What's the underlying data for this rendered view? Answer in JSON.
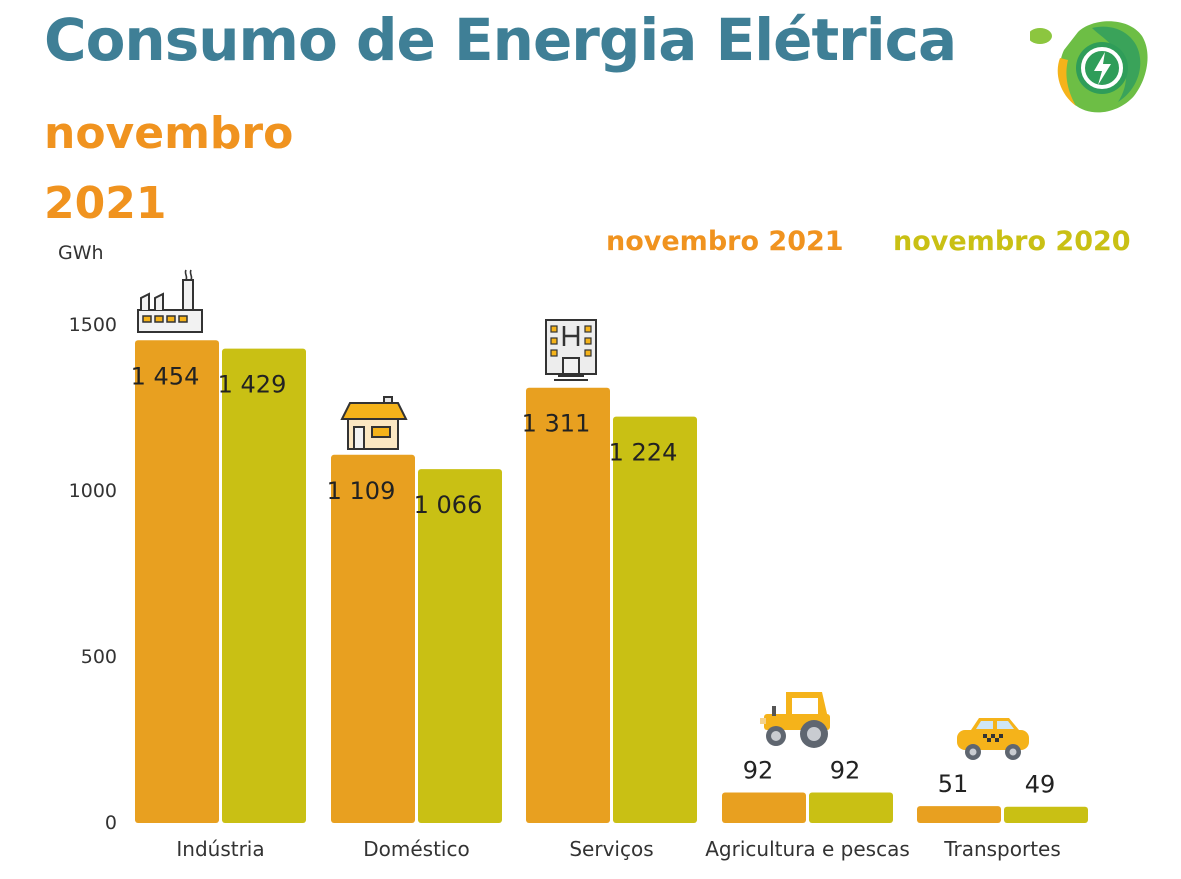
{
  "header": {
    "title": "Consumo de Energia Elétrica",
    "subtitle_month": "novembro",
    "subtitle_year": "2021",
    "unit": "GWh"
  },
  "legend": {
    "current": "novembro 2021",
    "previous": "novembro 2020"
  },
  "colors": {
    "title": "#3f7f96",
    "accent_orange": "#f0931f",
    "bar_2021": "#e8a020",
    "bar_2020": "#c9c014",
    "legend_2020": "#c9c014"
  },
  "chart_data": {
    "type": "bar",
    "categories": [
      "Indústria",
      "Doméstico",
      "Serviços",
      "Agricultura e pescas",
      "Transportes"
    ],
    "series": [
      {
        "name": "novembro 2021",
        "values": [
          1454,
          1109,
          1311,
          92,
          51
        ]
      },
      {
        "name": "novembro 2020",
        "values": [
          1429,
          1066,
          1224,
          92,
          49
        ]
      }
    ],
    "value_labels": [
      [
        "1 454",
        "1 109",
        "1 311",
        "92",
        "51"
      ],
      [
        "1 429",
        "1 066",
        "1 224",
        "92",
        "49"
      ]
    ],
    "ylabel": "GWh",
    "ylim": [
      0,
      1500
    ],
    "yticks": [
      "0",
      "500",
      "1000",
      "1500"
    ],
    "grid": false,
    "legend_position": "top-right"
  },
  "icons": [
    "factory-icon",
    "house-icon",
    "office-building-icon",
    "tractor-icon",
    "taxi-icon",
    "energy-logo-icon"
  ]
}
